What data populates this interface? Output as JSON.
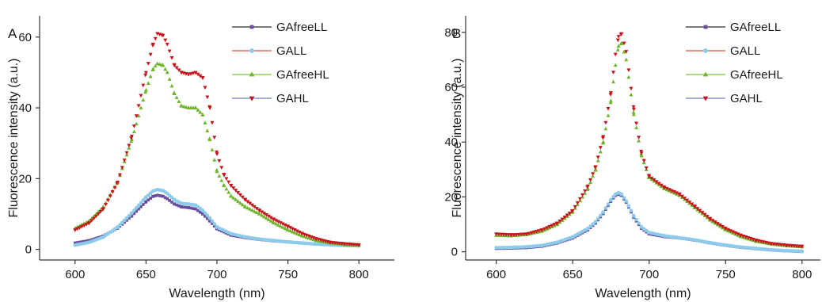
{
  "chart_data": [
    {
      "type": "scatter",
      "panel_label": "A",
      "xlabel": "Wavelength (nm)",
      "ylabel": "Fluorescence intensity (a.u.)",
      "xlim": [
        575,
        825
      ],
      "ylim": [
        -3,
        66
      ],
      "xticks": [
        600,
        650,
        700,
        750,
        800
      ],
      "yticks": [
        0,
        20,
        40,
        60
      ],
      "legend_position": "top-right",
      "grid": false,
      "series": [
        {
          "name": "GAfreeLL",
          "line_color": "#2b2b2b",
          "marker_color": "#6a4c9c",
          "marker": "square",
          "x": [
            600,
            610,
            620,
            630,
            640,
            650,
            655,
            658,
            662,
            665,
            670,
            675,
            680,
            685,
            690,
            695,
            700,
            710,
            720,
            730,
            740,
            750,
            760,
            770,
            780,
            790,
            800
          ],
          "y": [
            1.8,
            2.5,
            3.8,
            6.0,
            9.5,
            13.5,
            15.0,
            15.3,
            15.0,
            14.3,
            12.8,
            12.0,
            11.8,
            11.4,
            10.0,
            8.0,
            5.8,
            4.0,
            3.3,
            2.8,
            2.4,
            2.1,
            1.8,
            1.5,
            1.3,
            1.1,
            1.0
          ]
        },
        {
          "name": "GALL",
          "line_color": "#e8503a",
          "marker_color": "#8ccbea",
          "marker": "circle",
          "x": [
            600,
            610,
            620,
            630,
            640,
            650,
            655,
            658,
            662,
            665,
            670,
            675,
            680,
            685,
            690,
            695,
            700,
            710,
            720,
            730,
            740,
            750,
            760,
            770,
            780,
            790,
            800
          ],
          "y": [
            1.2,
            2.0,
            3.5,
            6.3,
            10.3,
            14.8,
            16.5,
            16.9,
            16.6,
            15.8,
            14.0,
            13.0,
            12.8,
            12.5,
            11.0,
            8.8,
            6.3,
            4.4,
            3.5,
            2.9,
            2.5,
            2.1,
            1.8,
            1.5,
            1.3,
            1.1,
            1.0
          ]
        },
        {
          "name": "GAfreeHL",
          "line_color": "#7fc24a",
          "marker_color": "#6fb52a",
          "marker": "triangle-up",
          "x": [
            600,
            610,
            620,
            630,
            640,
            650,
            655,
            658,
            662,
            665,
            670,
            675,
            680,
            685,
            690,
            695,
            700,
            705,
            710,
            720,
            730,
            740,
            750,
            760,
            770,
            780,
            790,
            800
          ],
          "y": [
            6.0,
            8.0,
            12.0,
            19.0,
            31.0,
            45.0,
            51.0,
            52.5,
            52.0,
            50.0,
            44.0,
            40.5,
            40.0,
            40.0,
            38.0,
            31.0,
            22.0,
            18.0,
            15.0,
            12.0,
            10.0,
            7.5,
            5.5,
            3.8,
            2.5,
            1.8,
            1.4,
            1.2
          ]
        },
        {
          "name": "GAHL",
          "line_color": "#6f7fc8",
          "marker_color": "#c8141b",
          "marker": "triangle-down",
          "x": [
            600,
            610,
            620,
            630,
            640,
            650,
            655,
            658,
            662,
            665,
            670,
            675,
            680,
            685,
            690,
            695,
            700,
            705,
            710,
            720,
            730,
            740,
            750,
            760,
            770,
            780,
            790,
            800
          ],
          "y": [
            5.5,
            7.5,
            11.5,
            19.0,
            32.0,
            50.0,
            58.0,
            61.0,
            60.5,
            58.0,
            52.0,
            50.0,
            49.5,
            50.0,
            48.5,
            40.0,
            27.0,
            21.0,
            18.0,
            14.0,
            11.0,
            8.5,
            6.5,
            4.5,
            3.0,
            2.0,
            1.6,
            1.3
          ]
        }
      ]
    },
    {
      "type": "scatter",
      "panel_label": "B",
      "xlabel": "Wavelength (nm)",
      "ylabel": "Fluorescence intensity (a.u.)",
      "xlim": [
        580,
        812
      ],
      "ylim": [
        -3,
        86
      ],
      "xticks": [
        600,
        650,
        700,
        750,
        800
      ],
      "yticks": [
        0,
        20,
        40,
        60,
        80
      ],
      "legend_position": "top-right",
      "grid": false,
      "series": [
        {
          "name": "GAfreeLL",
          "line_color": "#2b2b2b",
          "marker_color": "#6a4c9c",
          "marker": "square",
          "x": [
            600,
            610,
            620,
            630,
            640,
            650,
            660,
            665,
            670,
            675,
            678,
            680,
            682,
            685,
            690,
            695,
            700,
            710,
            720,
            730,
            740,
            750,
            760,
            770,
            780,
            790,
            800
          ],
          "y": [
            1.2,
            1.3,
            1.5,
            2.0,
            3.2,
            5.0,
            8.0,
            10.5,
            14.0,
            18.5,
            20.5,
            21.0,
            20.5,
            18.0,
            12.5,
            8.5,
            6.5,
            5.5,
            5.0,
            4.2,
            3.2,
            2.3,
            1.6,
            1.1,
            0.6,
            0.3,
            0.1
          ]
        },
        {
          "name": "GALL",
          "line_color": "#e8503a",
          "marker_color": "#8ccbea",
          "marker": "circle",
          "x": [
            600,
            610,
            620,
            630,
            640,
            650,
            660,
            665,
            670,
            675,
            678,
            680,
            682,
            685,
            690,
            695,
            700,
            710,
            720,
            730,
            740,
            750,
            760,
            770,
            780,
            790,
            800
          ],
          "y": [
            1.5,
            1.6,
            1.8,
            2.3,
            3.5,
            5.4,
            8.5,
            11.0,
            14.5,
            19.0,
            21.0,
            21.5,
            21.0,
            18.5,
            13.0,
            9.0,
            7.0,
            5.8,
            5.1,
            4.3,
            3.3,
            2.4,
            1.7,
            1.2,
            0.7,
            0.4,
            0.2
          ]
        },
        {
          "name": "GAfreeHL",
          "line_color": "#7fc24a",
          "marker_color": "#6fb52a",
          "marker": "triangle-up",
          "x": [
            600,
            610,
            620,
            630,
            640,
            650,
            660,
            665,
            670,
            675,
            678,
            680,
            682,
            685,
            690,
            695,
            700,
            710,
            720,
            730,
            740,
            750,
            760,
            770,
            780,
            790,
            800
          ],
          "y": [
            6.0,
            5.8,
            6.3,
            7.5,
            10.0,
            14.5,
            23.0,
            30.0,
            40.0,
            55.0,
            68.0,
            75.0,
            76.0,
            70.0,
            50.0,
            35.0,
            27.0,
            23.0,
            20.5,
            16.0,
            11.5,
            8.0,
            5.5,
            3.8,
            2.8,
            2.2,
            1.8
          ]
        },
        {
          "name": "GAHL",
          "line_color": "#6f7fc8",
          "marker_color": "#c8141b",
          "marker": "triangle-down",
          "x": [
            600,
            610,
            620,
            630,
            640,
            650,
            660,
            665,
            670,
            675,
            678,
            680,
            682,
            685,
            690,
            695,
            700,
            710,
            720,
            730,
            740,
            750,
            760,
            770,
            780,
            790,
            800
          ],
          "y": [
            6.5,
            6.2,
            6.5,
            8.0,
            10.5,
            15.0,
            24.0,
            31.0,
            42.0,
            58.0,
            72.0,
            78.5,
            79.5,
            73.0,
            52.0,
            36.0,
            27.5,
            23.5,
            21.0,
            16.5,
            12.0,
            8.5,
            6.0,
            4.2,
            3.0,
            2.4,
            2.0
          ]
        }
      ]
    }
  ]
}
